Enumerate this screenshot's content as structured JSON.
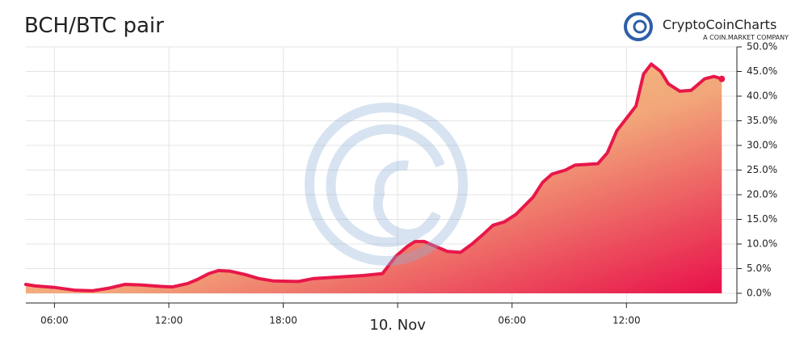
{
  "chart_data": {
    "type": "area",
    "title": "BCH/BTC pair",
    "logo": {
      "name": "CryptoCoinCharts",
      "tagline": "A COIN.MARKET COMPANY"
    },
    "x": [
      4.5,
      5,
      6,
      7.1,
      8,
      8.8,
      9.7,
      10.5,
      11.6,
      12.2,
      13,
      13.5,
      14.1,
      14.6,
      15.2,
      16,
      16.7,
      17.5,
      18.8,
      19.6,
      20.9,
      22.2,
      23.2,
      23.9,
      24.5,
      24.9,
      25.4,
      26,
      26.6,
      27.3,
      27.9,
      28.5,
      29,
      29.6,
      30.2,
      31.1,
      31.6,
      32.1,
      32.8,
      33.3,
      34.5,
      35,
      35.5,
      36.1,
      36.5,
      36.9,
      37.3,
      37.8,
      38.2,
      38.8,
      39.4,
      40.1,
      40.6,
      41
    ],
    "series": [
      {
        "name": "BCH/BTC",
        "color": "#e8174a",
        "values": [
          1.8,
          1.5,
          1.2,
          0.6,
          0.5,
          1.0,
          1.8,
          1.7,
          1.4,
          1.3,
          2.0,
          2.8,
          4.0,
          4.6,
          4.5,
          3.8,
          3.0,
          2.5,
          2.4,
          3.0,
          3.3,
          3.6,
          4.0,
          7.5,
          9.5,
          10.5,
          10.5,
          9.5,
          8.5,
          8.3,
          10.0,
          12.0,
          13.8,
          14.5,
          16.0,
          19.5,
          22.5,
          24.2,
          25.0,
          26.0,
          26.3,
          28.5,
          33.0,
          36.0,
          38.0,
          44.5,
          46.5,
          45.0,
          42.5,
          41.0,
          41.2,
          43.5,
          44.0,
          43.5
        ]
      }
    ],
    "xlim": [
      4.5,
      41.2
    ],
    "xticks": [
      {
        "value": 6,
        "label": "06:00"
      },
      {
        "value": 12,
        "label": "12:00"
      },
      {
        "value": 18,
        "label": "18:00"
      },
      {
        "value": 24,
        "label": "10. Nov"
      },
      {
        "value": 30,
        "label": "06:00"
      },
      {
        "value": 36,
        "label": "12:00"
      }
    ],
    "ylim": [
      0,
      50
    ],
    "yticks": [
      {
        "value": 0,
        "label": "0.0%"
      },
      {
        "value": 5,
        "label": "5.0%"
      },
      {
        "value": 10,
        "label": "10.0%"
      },
      {
        "value": 15,
        "label": "15.0%"
      },
      {
        "value": 20,
        "label": "20.0%"
      },
      {
        "value": 25,
        "label": "25.0%"
      },
      {
        "value": 30,
        "label": "30.0%"
      },
      {
        "value": 35,
        "label": "35.0%"
      },
      {
        "value": 40,
        "label": "40.0%"
      },
      {
        "value": 45,
        "label": "45.0%"
      },
      {
        "value": 50,
        "label": "50.0%"
      }
    ],
    "grid": true
  }
}
